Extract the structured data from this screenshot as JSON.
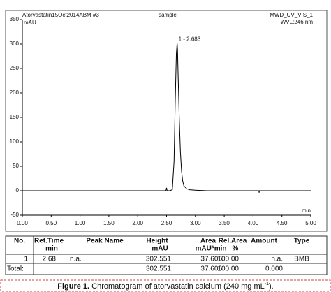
{
  "chart_data": {
    "type": "line",
    "header_left": "Atorvastatin15Oct2014ABM #3",
    "header_center": "sample",
    "header_right": "MWD_UV_VIS_1",
    "header_right2": "WVL:246 nm",
    "y_label": "mAU",
    "x_label": "min",
    "peak_label": "1 - 2.683",
    "xlim": [
      0,
      5
    ],
    "ylim": [
      -50,
      350
    ],
    "xticks": [
      {
        "value": 0,
        "label": "0.00"
      },
      {
        "value": 0.5,
        "label": "0.50"
      },
      {
        "value": 1,
        "label": "1.00"
      },
      {
        "value": 1.5,
        "label": "1.50"
      },
      {
        "value": 2,
        "label": "2.00"
      },
      {
        "value": 2.5,
        "label": "2.50"
      },
      {
        "value": 3,
        "label": "3.00"
      },
      {
        "value": 3.5,
        "label": "3.50"
      },
      {
        "value": 4,
        "label": "4.00"
      },
      {
        "value": 4.5,
        "label": "4.50"
      },
      {
        "value": 5,
        "label": "5.00"
      }
    ],
    "yticks": [
      -50,
      0,
      50,
      100,
      150,
      200,
      250,
      300,
      350
    ],
    "series": [
      {
        "color": "#000000",
        "x": [
          0,
          2.49,
          2.5,
          2.51,
          2.55,
          2.6,
          2.63,
          2.65,
          2.67,
          2.683,
          2.69,
          2.7,
          2.72,
          2.74,
          2.76,
          2.78,
          2.8,
          2.85,
          2.9,
          3.0,
          3.2,
          4.1,
          4.105,
          4.11,
          5.0
        ],
        "values": [
          0,
          0,
          6,
          0,
          0,
          2,
          60,
          180,
          280,
          302.551,
          290,
          240,
          150,
          80,
          40,
          20,
          10,
          4,
          2,
          1,
          0,
          0,
          -4,
          0,
          0
        ]
      }
    ]
  },
  "table": {
    "headers": [
      [
        "No."
      ],
      [
        "Ret.Time",
        "min"
      ],
      [
        "Peak Name"
      ],
      [
        "Height",
        "mAU"
      ],
      [
        "Area",
        "mAU*min"
      ],
      [
        "Rel.Area",
        "%"
      ],
      [
        "Amount"
      ],
      [
        "Type"
      ]
    ],
    "rows": [
      [
        "1",
        "2.68",
        "n.a.",
        "302.551",
        "37.606",
        "100.00",
        "n.a.",
        "BMB"
      ]
    ],
    "total": {
      "label": "Total:",
      "cells": [
        "302.551",
        "37.606",
        "100.00",
        "0.000"
      ]
    }
  },
  "caption": {
    "label": "Figure 1.",
    "text": " Chromatogram of atorvastatin calcium (240 mg mL",
    "superscript": "-1",
    "end": ")."
  }
}
